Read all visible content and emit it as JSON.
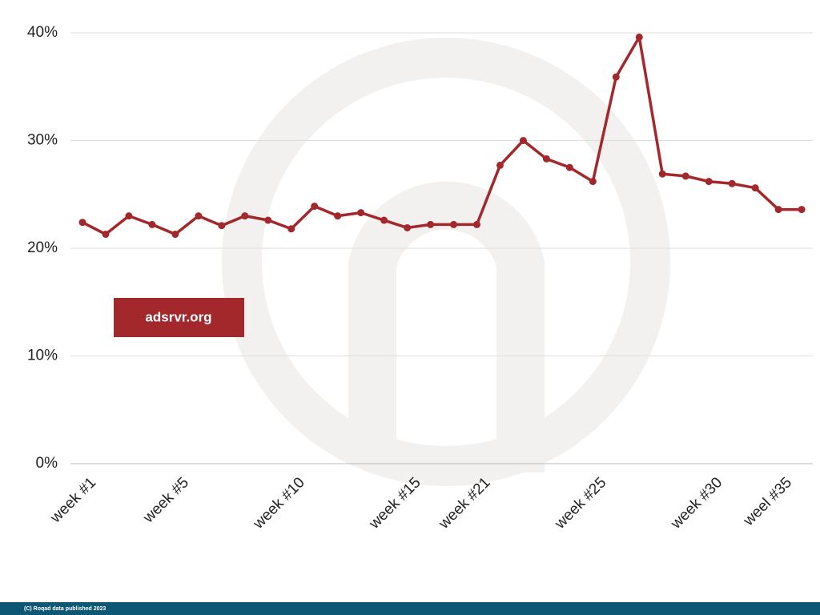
{
  "chart_data": {
    "type": "line",
    "categories": [
      "week #1",
      null,
      null,
      null,
      "week #5",
      null,
      null,
      null,
      null,
      "week #10",
      null,
      null,
      null,
      null,
      "week #15",
      null,
      null,
      "week #21",
      null,
      null,
      null,
      null,
      "week #25",
      null,
      null,
      null,
      null,
      "week #30",
      null,
      null,
      "weel #35",
      null
    ],
    "series": [
      {
        "color": "#a3282b",
        "values": [
          22.4,
          21.3,
          23.0,
          22.2,
          21.3,
          23.0,
          22.1,
          23.0,
          22.6,
          21.8,
          23.9,
          23.0,
          23.3,
          22.6,
          21.9,
          22.2,
          22.2,
          22.2,
          27.7,
          30.0,
          28.3,
          27.5,
          26.2,
          35.9,
          39.6,
          26.9,
          26.7,
          26.2,
          26.0,
          25.6,
          23.6,
          23.6
        ]
      }
    ],
    "ylim": [
      0,
      40
    ],
    "yticks": [
      {
        "value": 0,
        "label": "0%"
      },
      {
        "value": 10,
        "label": "10%"
      },
      {
        "value": 20,
        "label": "20%"
      },
      {
        "value": 30,
        "label": "30%"
      },
      {
        "value": 40,
        "label": "40%"
      }
    ],
    "grid": true
  },
  "badge": "adsrvr.org",
  "footer": "(C) Roqad data published 2023"
}
